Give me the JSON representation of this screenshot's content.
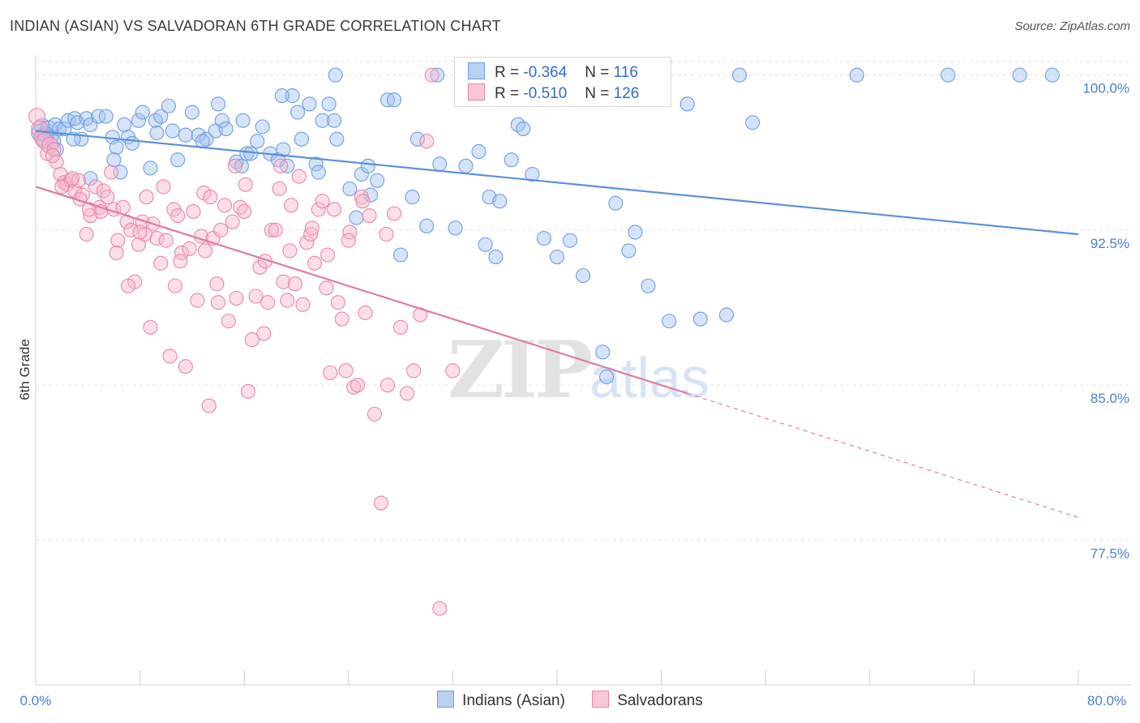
{
  "header": {
    "title": "INDIAN (ASIAN) VS SALVADORAN 6TH GRADE CORRELATION CHART",
    "source": "Source: ZipAtlas.com"
  },
  "watermark": {
    "zip": "ZIP",
    "atlas": "atlas"
  },
  "legend": {
    "r_label": "R =",
    "n_label": "N =",
    "rows": [
      {
        "r": "-0.364",
        "n": "116",
        "color": "#6f9ee0",
        "fill": "#b9d0f2"
      },
      {
        "r": "-0.510",
        "n": "126",
        "color": "#e887a8",
        "fill": "#f8c6d6"
      }
    ]
  },
  "bottom_legend": [
    "Indians (Asian)",
    "Salvadorans"
  ],
  "chart_data": {
    "type": "scatter",
    "title": "INDIAN (ASIAN) VS SALVADORAN 6TH GRADE CORRELATION CHART",
    "xlabel": "",
    "ylabel": "6th Grade",
    "xlim": [
      0,
      80
    ],
    "ylim": [
      70.5,
      101.2
    ],
    "x_tick_labels": [
      "0.0%",
      "80.0%"
    ],
    "y_ticks": [
      77.5,
      85.0,
      92.5,
      100.0
    ],
    "y_tick_labels": [
      "77.5%",
      "85.0%",
      "92.5%",
      "100.0%"
    ],
    "grid": "horizontal dashed",
    "legend_position": "top-center",
    "series": [
      {
        "name": "Indians (Asian)",
        "color": "#5b8fdb",
        "trend": {
          "x": [
            0,
            80
          ],
          "y": [
            97.3,
            92.3
          ],
          "style": "solid"
        },
        "points": [
          [
            0.3,
            97.2
          ],
          [
            0.5,
            97.5
          ],
          [
            0.6,
            96.9
          ],
          [
            0.8,
            97.1
          ],
          [
            1.0,
            97.4
          ],
          [
            1.2,
            97.0
          ],
          [
            1.4,
            96.8
          ],
          [
            1.5,
            97.6
          ],
          [
            1.6,
            96.4
          ],
          [
            1.8,
            97.4
          ],
          [
            2.2,
            97.4
          ],
          [
            2.5,
            97.8
          ],
          [
            3.0,
            97.9
          ],
          [
            3.2,
            97.7
          ],
          [
            3.5,
            96.9
          ],
          [
            3.9,
            97.9
          ],
          [
            4.2,
            97.6
          ],
          [
            4.8,
            98.0
          ],
          [
            5.4,
            98.0
          ],
          [
            5.9,
            97.0
          ],
          [
            6.2,
            96.5
          ],
          [
            6.5,
            95.3
          ],
          [
            6.8,
            97.6
          ],
          [
            7.1,
            97.0
          ],
          [
            7.4,
            96.7
          ],
          [
            7.9,
            97.8
          ],
          [
            8.2,
            98.2
          ],
          [
            8.8,
            95.5
          ],
          [
            9.2,
            97.8
          ],
          [
            9.6,
            98.0
          ],
          [
            10.2,
            98.5
          ],
          [
            10.5,
            97.3
          ],
          [
            10.9,
            95.9
          ],
          [
            11.5,
            97.1
          ],
          [
            12.0,
            98.2
          ],
          [
            12.5,
            97.1
          ],
          [
            13.1,
            96.9
          ],
          [
            13.8,
            97.3
          ],
          [
            14.0,
            98.6
          ],
          [
            14.3,
            97.8
          ],
          [
            14.6,
            97.4
          ],
          [
            15.4,
            95.8
          ],
          [
            15.8,
            95.6
          ],
          [
            16.2,
            96.2
          ],
          [
            16.5,
            96.2
          ],
          [
            17.0,
            96.8
          ],
          [
            17.4,
            97.5
          ],
          [
            18.0,
            96.2
          ],
          [
            18.6,
            95.9
          ],
          [
            19.0,
            96.4
          ],
          [
            19.3,
            95.6
          ],
          [
            19.7,
            99.0
          ],
          [
            20.1,
            98.2
          ],
          [
            20.4,
            96.9
          ],
          [
            21.0,
            98.6
          ],
          [
            21.5,
            95.7
          ],
          [
            21.7,
            95.3
          ],
          [
            22.0,
            97.8
          ],
          [
            22.5,
            98.6
          ],
          [
            22.9,
            97.8
          ],
          [
            23.1,
            96.9
          ],
          [
            24.1,
            94.5
          ],
          [
            24.6,
            93.1
          ],
          [
            25.0,
            95.2
          ],
          [
            25.5,
            95.6
          ],
          [
            25.7,
            94.2
          ],
          [
            26.2,
            94.9
          ],
          [
            27.0,
            98.8
          ],
          [
            27.5,
            98.8
          ],
          [
            28.0,
            91.3
          ],
          [
            28.9,
            94.1
          ],
          [
            29.3,
            96.9
          ],
          [
            30.0,
            92.7
          ],
          [
            31.0,
            95.7
          ],
          [
            32.2,
            92.6
          ],
          [
            33.0,
            95.6
          ],
          [
            34.0,
            96.3
          ],
          [
            34.5,
            91.8
          ],
          [
            34.8,
            94.1
          ],
          [
            35.3,
            91.2
          ],
          [
            35.6,
            93.9
          ],
          [
            36.5,
            95.9
          ],
          [
            37.0,
            97.6
          ],
          [
            37.4,
            97.4
          ],
          [
            38.1,
            95.2
          ],
          [
            39.0,
            92.1
          ],
          [
            40.0,
            91.2
          ],
          [
            41.0,
            92.0
          ],
          [
            42.0,
            90.3
          ],
          [
            43.5,
            86.6
          ],
          [
            43.8,
            85.4
          ],
          [
            44.5,
            93.8
          ],
          [
            45.5,
            91.5
          ],
          [
            46.0,
            92.4
          ],
          [
            47.0,
            89.8
          ],
          [
            48.6,
            88.1
          ],
          [
            50.0,
            98.6
          ],
          [
            51.0,
            88.2
          ],
          [
            53.0,
            88.4
          ],
          [
            54.0,
            100.0
          ],
          [
            55.0,
            97.7
          ],
          [
            63.0,
            100.0
          ],
          [
            70.0,
            100.0
          ],
          [
            75.5,
            100.0
          ],
          [
            78.0,
            100.0
          ],
          [
            30.8,
            100.0
          ],
          [
            35.0,
            100.0
          ],
          [
            47.0,
            100.0
          ],
          [
            23.0,
            100.0
          ],
          [
            15.9,
            97.8
          ],
          [
            12.8,
            96.8
          ],
          [
            9.3,
            97.2
          ],
          [
            6.0,
            95.9
          ],
          [
            4.2,
            95.0
          ],
          [
            2.9,
            96.9
          ],
          [
            18.9,
            99.0
          ]
        ]
      },
      {
        "name": "Salvadorans",
        "color": "#e07ba0",
        "trend": {
          "x": [
            0,
            50
          ],
          "y": [
            94.6,
            84.6
          ],
          "style": "solid",
          "extension": {
            "x": [
              50,
              80
            ],
            "y": [
              84.6,
              78.6
            ],
            "style": "dashed"
          }
        },
        "points": [
          [
            0.1,
            98.0
          ],
          [
            0.3,
            97.4
          ],
          [
            0.5,
            97.0
          ],
          [
            0.7,
            96.8
          ],
          [
            0.9,
            96.2
          ],
          [
            1.1,
            96.6
          ],
          [
            1.4,
            96.4
          ],
          [
            1.6,
            95.8
          ],
          [
            1.9,
            95.2
          ],
          [
            2.2,
            94.8
          ],
          [
            2.4,
            94.7
          ],
          [
            2.7,
            94.9
          ],
          [
            3.0,
            94.4
          ],
          [
            3.3,
            94.9
          ],
          [
            3.6,
            94.2
          ],
          [
            3.9,
            92.3
          ],
          [
            4.2,
            93.2
          ],
          [
            4.6,
            94.6
          ],
          [
            4.9,
            93.6
          ],
          [
            5.2,
            94.4
          ],
          [
            5.5,
            94.1
          ],
          [
            5.8,
            95.3
          ],
          [
            6.0,
            93.5
          ],
          [
            6.3,
            92.0
          ],
          [
            6.7,
            93.6
          ],
          [
            7.0,
            92.9
          ],
          [
            7.3,
            92.5
          ],
          [
            7.6,
            90.0
          ],
          [
            7.9,
            91.8
          ],
          [
            8.2,
            92.9
          ],
          [
            8.5,
            94.1
          ],
          [
            8.8,
            87.8
          ],
          [
            9.0,
            92.8
          ],
          [
            9.3,
            92.1
          ],
          [
            9.6,
            90.9
          ],
          [
            10.0,
            92.0
          ],
          [
            10.3,
            86.4
          ],
          [
            10.6,
            93.5
          ],
          [
            10.9,
            93.2
          ],
          [
            11.2,
            91.4
          ],
          [
            11.5,
            85.9
          ],
          [
            11.8,
            91.6
          ],
          [
            12.1,
            93.4
          ],
          [
            12.4,
            89.1
          ],
          [
            12.7,
            92.2
          ],
          [
            13.0,
            91.5
          ],
          [
            13.3,
            84.0
          ],
          [
            13.6,
            92.1
          ],
          [
            13.9,
            89.9
          ],
          [
            14.2,
            92.5
          ],
          [
            14.5,
            93.7
          ],
          [
            14.8,
            88.1
          ],
          [
            15.1,
            92.9
          ],
          [
            15.4,
            89.2
          ],
          [
            15.7,
            93.6
          ],
          [
            16.0,
            93.4
          ],
          [
            16.3,
            84.7
          ],
          [
            16.6,
            87.2
          ],
          [
            16.9,
            89.3
          ],
          [
            17.2,
            90.7
          ],
          [
            17.5,
            87.5
          ],
          [
            17.8,
            89.0
          ],
          [
            18.1,
            92.5
          ],
          [
            18.4,
            92.5
          ],
          [
            18.7,
            94.5
          ],
          [
            19.0,
            90.0
          ],
          [
            19.3,
            89.1
          ],
          [
            19.6,
            93.7
          ],
          [
            19.9,
            89.9
          ],
          [
            20.2,
            95.1
          ],
          [
            20.5,
            88.9
          ],
          [
            20.8,
            91.9
          ],
          [
            21.1,
            92.3
          ],
          [
            21.4,
            90.9
          ],
          [
            21.7,
            93.5
          ],
          [
            22.0,
            93.9
          ],
          [
            22.3,
            89.7
          ],
          [
            22.6,
            85.6
          ],
          [
            22.9,
            93.5
          ],
          [
            23.2,
            89.0
          ],
          [
            23.5,
            88.2
          ],
          [
            23.8,
            85.7
          ],
          [
            24.1,
            92.4
          ],
          [
            24.4,
            84.9
          ],
          [
            24.7,
            85.0
          ],
          [
            25.0,
            94.1
          ],
          [
            25.3,
            88.5
          ],
          [
            25.6,
            93.2
          ],
          [
            26.0,
            83.6
          ],
          [
            26.5,
            79.3
          ],
          [
            27.0,
            85.0
          ],
          [
            27.5,
            93.3
          ],
          [
            28.0,
            87.8
          ],
          [
            28.5,
            84.6
          ],
          [
            29.0,
            85.7
          ],
          [
            29.5,
            88.4
          ],
          [
            30.0,
            96.8
          ],
          [
            31.0,
            74.2
          ],
          [
            32.0,
            85.7
          ],
          [
            30.4,
            100.0
          ],
          [
            25.1,
            93.9
          ],
          [
            21.2,
            92.6
          ],
          [
            17.6,
            91.0
          ],
          [
            15.3,
            95.6
          ],
          [
            12.9,
            94.3
          ],
          [
            11.1,
            91.0
          ],
          [
            8.4,
            92.3
          ],
          [
            7.1,
            89.8
          ],
          [
            6.2,
            91.4
          ],
          [
            5.0,
            93.4
          ],
          [
            4.1,
            93.5
          ],
          [
            3.4,
            94.0
          ],
          [
            2.8,
            95.0
          ],
          [
            2.0,
            94.6
          ],
          [
            1.3,
            96.1
          ],
          [
            9.8,
            94.6
          ],
          [
            14.0,
            89.0
          ],
          [
            18.8,
            95.6
          ],
          [
            22.4,
            91.3
          ],
          [
            26.9,
            92.3
          ],
          [
            16.1,
            94.7
          ],
          [
            13.4,
            94.1
          ],
          [
            10.7,
            89.8
          ],
          [
            8.0,
            92.4
          ],
          [
            19.5,
            91.5
          ],
          [
            24.0,
            92.0
          ]
        ]
      }
    ]
  }
}
